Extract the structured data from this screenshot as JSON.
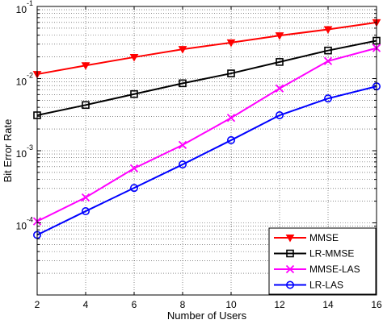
{
  "chart_data": {
    "type": "line",
    "title": "",
    "xlabel": "Number of Users",
    "ylabel": "Bit Error Rate",
    "x": [
      2,
      4,
      6,
      8,
      10,
      12,
      14,
      16
    ],
    "xlim": [
      2,
      16
    ],
    "xticks": [
      "2",
      "4",
      "6",
      "8",
      "10",
      "12",
      "14",
      "16"
    ],
    "ylim": [
      1e-05,
      0.1
    ],
    "yscale": "log",
    "ytick_labels": [
      {
        "base": "10",
        "exp": "-1"
      },
      {
        "base": "10",
        "exp": "-2"
      },
      {
        "base": "10",
        "exp": "-3"
      },
      {
        "base": "10",
        "exp": "-4"
      }
    ],
    "grid": true,
    "legend_position": "bottom-right",
    "series": [
      {
        "name": "MMSE",
        "color": "#ff0000",
        "marker": "triangle-down",
        "values": [
          0.0115,
          0.0152,
          0.0198,
          0.0255,
          0.0315,
          0.0395,
          0.048,
          0.06
        ]
      },
      {
        "name": "LR-MMSE",
        "color": "#000000",
        "marker": "square",
        "values": [
          0.0031,
          0.0043,
          0.0061,
          0.0086,
          0.0118,
          0.017,
          0.0245,
          0.0335
        ]
      },
      {
        "name": "MMSE-LAS",
        "color": "#ff00ff",
        "marker": "x",
        "values": [
          0.000105,
          0.000225,
          0.00057,
          0.0012,
          0.00285,
          0.0073,
          0.0175,
          0.0265
        ]
      },
      {
        "name": "LR-LAS",
        "color": "#0000ff",
        "marker": "circle",
        "values": [
          6.8e-05,
          0.000145,
          0.000305,
          0.000645,
          0.0014,
          0.0031,
          0.0053,
          0.0078
        ]
      }
    ]
  }
}
